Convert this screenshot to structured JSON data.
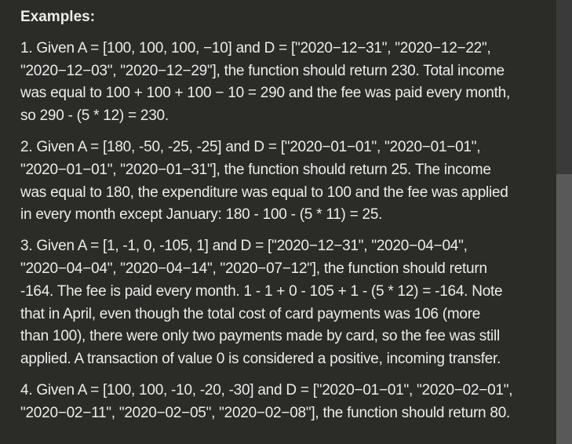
{
  "heading": "Examples:",
  "examples": [
    {
      "lines": [
        "1. Given A = [100, 100, 100, −10] and D = [\"2020−12−31\", \"2020−12−22\",",
        "\"2020−12−03\", \"2020−12−29\"], the function should return 230. Total income",
        "was equal to 100 + 100 + 100 − 10 = 290 and the fee was paid every month,",
        "so 290 - (5 * 12) = 230."
      ]
    },
    {
      "lines": [
        "2. Given A = [180, -50, -25, -25] and D = [\"2020−01−01\", \"2020−01−01\",",
        "\"2020−01−01\", \"2020−01−31\"], the function should return 25. The income",
        "was equal to 180, the expenditure was equal to 100 and the fee was applied",
        "in every month except January: 180 - 100 - (5 * 11) = 25."
      ]
    },
    {
      "lines": [
        "3. Given A = [1, -1, 0, -105, 1] and D = [\"2020−12−31\", \"2020−04−04\",",
        "\"2020−04−04\", \"2020−04−14\", \"2020−07−12\"], the function should return",
        "-164. The fee is paid every month. 1 - 1 + 0 - 105 + 1 - (5 * 12) = -164. Note",
        "that in April, even though the total cost of card payments was 106 (more",
        "than 100), there were only two payments made by card, so the fee was still",
        "applied. A transaction of value 0 is considered a positive, incoming transfer."
      ]
    },
    {
      "lines": [
        "4. Given A = [100, 100, -10, -20, -30] and D = [\"2020−01−01\", \"2020−02−01\",",
        "\"2020−02−11\", \"2020−02−05\", \"2020−02−08\"], the function should return 80."
      ]
    }
  ]
}
